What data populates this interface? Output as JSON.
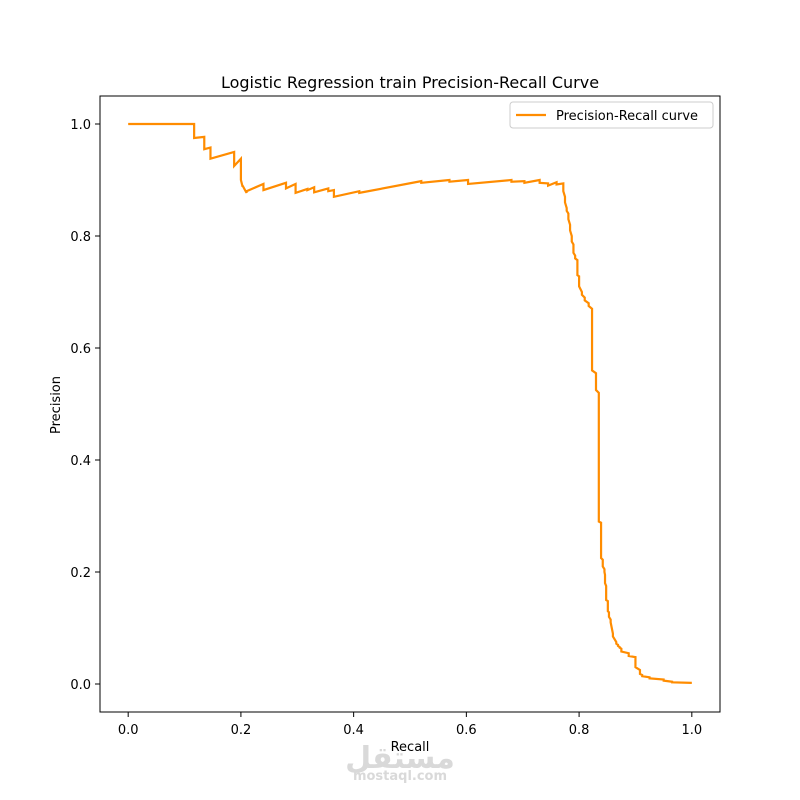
{
  "watermark": {
    "arabic": "مستقل",
    "latin": "mostaql.com"
  },
  "chart_data": {
    "type": "line",
    "title": "Logistic Regression train Precision-Recall Curve",
    "xlabel": "Recall",
    "ylabel": "Precision",
    "xlim": [
      -0.05,
      1.05
    ],
    "ylim": [
      -0.05,
      1.05
    ],
    "xticks": [
      0.0,
      0.2,
      0.4,
      0.6,
      0.8,
      1.0
    ],
    "yticks": [
      0.0,
      0.2,
      0.4,
      0.6,
      0.8,
      1.0
    ],
    "xtick_labels": [
      "0.0",
      "0.2",
      "0.4",
      "0.6",
      "0.8",
      "1.0"
    ],
    "ytick_labels": [
      "0.0",
      "0.2",
      "0.4",
      "0.6",
      "0.8",
      "1.0"
    ],
    "grid": false,
    "legend_position": "upper-right",
    "series": [
      {
        "name": "Precision-Recall curve",
        "color": "#ff8c00",
        "x": [
          0.0,
          0.117,
          0.117,
          0.135,
          0.135,
          0.146,
          0.146,
          0.188,
          0.188,
          0.2,
          0.2,
          0.203,
          0.203,
          0.21,
          0.21,
          0.24,
          0.24,
          0.28,
          0.28,
          0.297,
          0.297,
          0.318,
          0.318,
          0.33,
          0.33,
          0.355,
          0.355,
          0.365,
          0.365,
          0.41,
          0.41,
          0.52,
          0.52,
          0.57,
          0.57,
          0.603,
          0.603,
          0.68,
          0.68,
          0.703,
          0.703,
          0.73,
          0.73,
          0.745,
          0.745,
          0.76,
          0.76,
          0.772,
          0.772,
          0.775,
          0.775,
          0.778,
          0.778,
          0.781,
          0.781,
          0.784,
          0.784,
          0.787,
          0.787,
          0.79,
          0.79,
          0.793,
          0.793,
          0.797,
          0.797,
          0.8,
          0.8,
          0.805,
          0.805,
          0.81,
          0.81,
          0.817,
          0.817,
          0.823,
          0.823,
          0.83,
          0.83,
          0.835,
          0.835,
          0.839,
          0.839,
          0.842,
          0.842,
          0.845,
          0.845,
          0.846,
          0.846,
          0.848,
          0.848,
          0.851,
          0.851,
          0.853,
          0.853,
          0.856,
          0.856,
          0.86,
          0.86,
          0.866,
          0.866,
          0.869,
          0.869,
          0.872,
          0.872,
          0.875,
          0.875,
          0.888,
          0.888,
          0.9,
          0.9,
          0.908,
          0.908,
          0.912,
          0.912,
          0.925,
          0.925,
          0.95,
          0.95,
          0.965,
          0.965,
          1.0
        ],
        "y": [
          1.0,
          1.0,
          0.975,
          0.977,
          0.955,
          0.958,
          0.938,
          0.95,
          0.925,
          0.938,
          0.9,
          0.888,
          0.89,
          0.877,
          0.88,
          0.893,
          0.882,
          0.895,
          0.885,
          0.893,
          0.877,
          0.884,
          0.882,
          0.887,
          0.878,
          0.885,
          0.88,
          0.882,
          0.87,
          0.88,
          0.877,
          0.898,
          0.895,
          0.9,
          0.897,
          0.9,
          0.893,
          0.9,
          0.897,
          0.898,
          0.895,
          0.9,
          0.895,
          0.894,
          0.89,
          0.896,
          0.892,
          0.894,
          0.88,
          0.87,
          0.86,
          0.85,
          0.845,
          0.84,
          0.83,
          0.82,
          0.81,
          0.8,
          0.79,
          0.785,
          0.77,
          0.765,
          0.76,
          0.757,
          0.73,
          0.728,
          0.71,
          0.7,
          0.695,
          0.69,
          0.685,
          0.68,
          0.675,
          0.67,
          0.56,
          0.555,
          0.525,
          0.52,
          0.29,
          0.288,
          0.225,
          0.222,
          0.21,
          0.205,
          0.2,
          0.195,
          0.18,
          0.175,
          0.15,
          0.148,
          0.13,
          0.128,
          0.12,
          0.115,
          0.11,
          0.09,
          0.085,
          0.075,
          0.072,
          0.07,
          0.068,
          0.066,
          0.065,
          0.063,
          0.058,
          0.055,
          0.05,
          0.048,
          0.03,
          0.025,
          0.018,
          0.016,
          0.014,
          0.012,
          0.01,
          0.008,
          0.006,
          0.004,
          0.003,
          0.002
        ]
      }
    ]
  }
}
